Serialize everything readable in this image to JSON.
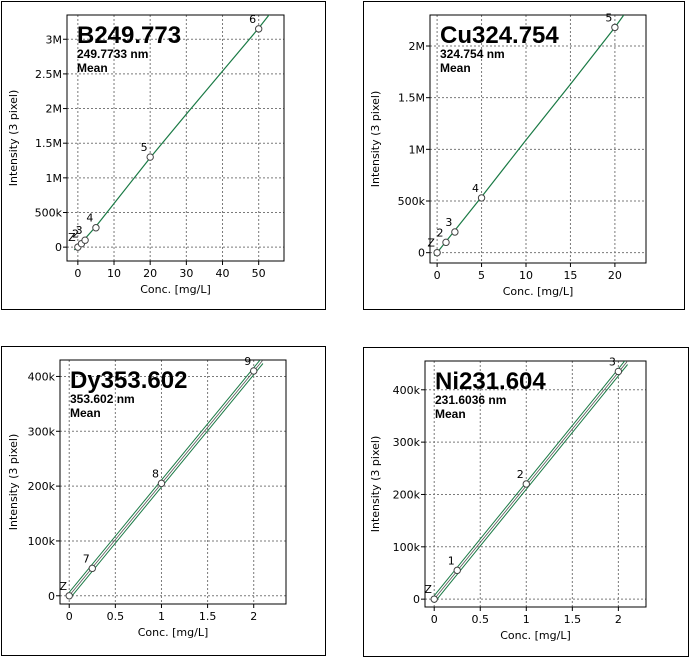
{
  "colors": {
    "fit": "#1a7a45",
    "band": "#1a7a45",
    "marker": "#444444",
    "grid": "#7a7a7a"
  },
  "chart_data": [
    {
      "type": "scatter",
      "title": "B249.773",
      "subtitle": "249.7733 nm",
      "statistic": "Mean",
      "xlabel": "Conc. [mg/L]",
      "ylabel": "Intensity (3 pixel)",
      "xlim": [
        -3,
        57
      ],
      "ylim": [
        -200000,
        3350000
      ],
      "xticks": [
        0,
        10,
        20,
        30,
        40,
        50
      ],
      "xtick_labels": [
        "0",
        "10",
        "20",
        "30",
        "40",
        "50"
      ],
      "yticks": [
        0,
        500000,
        1000000,
        1500000,
        2000000,
        2500000,
        3000000
      ],
      "ytick_labels": [
        "0",
        "500k",
        "1M",
        "1.5M",
        "2M",
        "2.5M",
        "3M"
      ],
      "points": [
        {
          "label": "Z",
          "x": 0,
          "y": 0
        },
        {
          "label": "2",
          "x": 1,
          "y": 50000
        },
        {
          "label": "3",
          "x": 2,
          "y": 100000
        },
        {
          "label": "4",
          "x": 5,
          "y": 280000
        },
        {
          "label": "5",
          "x": 20,
          "y": 1300000
        },
        {
          "label": "6",
          "x": 50,
          "y": 3150000
        }
      ],
      "fit": [
        [
          -1,
          -40000
        ],
        [
          0,
          5000
        ],
        [
          5,
          300000
        ],
        [
          10,
          630000
        ],
        [
          20,
          1290000
        ],
        [
          30,
          1920000
        ],
        [
          40,
          2540000
        ],
        [
          50,
          3160000
        ],
        [
          53,
          3360000
        ]
      ]
    },
    {
      "type": "scatter",
      "title": "Cu324.754",
      "subtitle": "324.754 nm",
      "statistic": "Mean",
      "xlabel": "Conc. [mg/L]",
      "ylabel": "Intensity (3 pixel)",
      "xlim": [
        -0.8,
        23.5
      ],
      "ylim": [
        -100000,
        2300000
      ],
      "xticks": [
        0,
        5,
        10,
        15,
        20
      ],
      "xtick_labels": [
        "0",
        "5",
        "10",
        "15",
        "20"
      ],
      "yticks": [
        0,
        500000,
        1000000,
        1500000,
        2000000
      ],
      "ytick_labels": [
        "0",
        "500k",
        "1M",
        "1.5M",
        "2M"
      ],
      "points": [
        {
          "label": "Z",
          "x": 0,
          "y": 0
        },
        {
          "label": "2",
          "x": 1,
          "y": 100000
        },
        {
          "label": "3",
          "x": 2,
          "y": 200000
        },
        {
          "label": "4",
          "x": 5,
          "y": 530000
        },
        {
          "label": "5",
          "x": 20,
          "y": 2180000
        }
      ],
      "fit": [
        [
          -0.3,
          -30000
        ],
        [
          0,
          0
        ],
        [
          5,
          540000
        ],
        [
          10,
          1090000
        ],
        [
          15,
          1630000
        ],
        [
          20,
          2180000
        ],
        [
          21,
          2300000
        ]
      ]
    },
    {
      "type": "scatter",
      "title": "Dy353.602",
      "subtitle": "353.602 nm",
      "statistic": "Mean",
      "xlabel": "Conc. [mg/L]",
      "ylabel": "Intensity (3 pixel)",
      "xlim": [
        -0.1,
        2.35
      ],
      "ylim": [
        -15000,
        430000
      ],
      "xticks": [
        0,
        0.5,
        1,
        1.5,
        2
      ],
      "xtick_labels": [
        "0",
        "0.5",
        "1",
        "1.5",
        "2"
      ],
      "yticks": [
        0,
        100000,
        200000,
        300000,
        400000
      ],
      "ytick_labels": [
        "0",
        "100k",
        "200k",
        "300k",
        "400k"
      ],
      "points": [
        {
          "label": "Z",
          "x": 0,
          "y": 0
        },
        {
          "label": "7",
          "x": 0.25,
          "y": 50000
        },
        {
          "label": "8",
          "x": 1,
          "y": 205000
        },
        {
          "label": "9",
          "x": 2,
          "y": 410000
        }
      ],
      "fit": [
        [
          0,
          0
        ],
        [
          2.1,
          430000
        ]
      ],
      "band": true
    },
    {
      "type": "scatter",
      "title": "Ni231.604",
      "subtitle": "231.6036 nm",
      "statistic": "Mean",
      "xlabel": "Conc. [mg/L]",
      "ylabel": "Intensity (3 pixel)",
      "xlim": [
        -0.1,
        2.3
      ],
      "ylim": [
        -15000,
        455000
      ],
      "xticks": [
        0,
        0.5,
        1,
        1.5,
        2
      ],
      "xtick_labels": [
        "0",
        "0.5",
        "1",
        "1.5",
        "2"
      ],
      "yticks": [
        0,
        100000,
        200000,
        300000,
        400000
      ],
      "ytick_labels": [
        "0",
        "100k",
        "200k",
        "300k",
        "400k"
      ],
      "points": [
        {
          "label": "Z",
          "x": 0,
          "y": 0
        },
        {
          "label": "1",
          "x": 0.25,
          "y": 55000
        },
        {
          "label": "2",
          "x": 1,
          "y": 220000
        },
        {
          "label": "3",
          "x": 2,
          "y": 435000
        }
      ],
      "fit": [
        [
          0,
          0
        ],
        [
          2.1,
          455000
        ]
      ],
      "band": true
    }
  ]
}
